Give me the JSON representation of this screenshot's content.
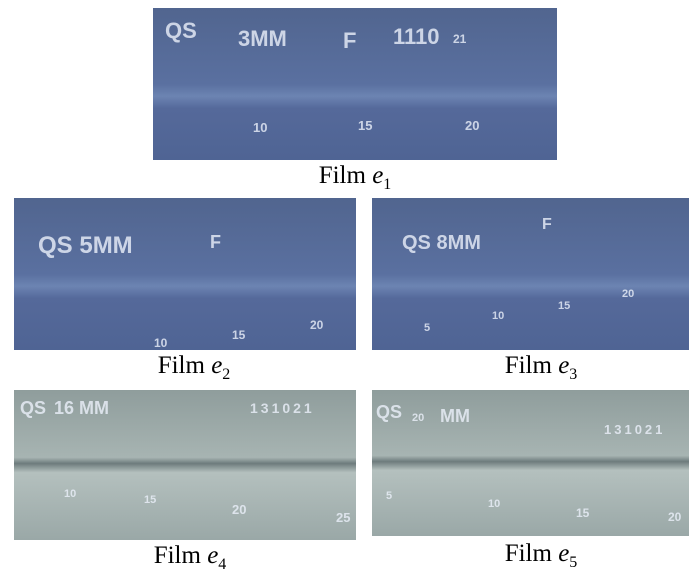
{
  "films": [
    {
      "caption": {
        "label": "Film",
        "variable": "e",
        "subscript": "1"
      },
      "markings": [
        "QS",
        "3MM",
        "F",
        "1110",
        "21",
        "10",
        "15",
        "20"
      ]
    },
    {
      "caption": {
        "label": "Film",
        "variable": "e",
        "subscript": "2"
      },
      "markings": [
        "QS 5MM",
        "F",
        "10",
        "15",
        "20"
      ]
    },
    {
      "caption": {
        "label": "Film",
        "variable": "e",
        "subscript": "3"
      },
      "markings": [
        "QS 8MM",
        "F",
        "5",
        "10",
        "15",
        "20"
      ]
    },
    {
      "caption": {
        "label": "Film",
        "variable": "e",
        "subscript": "4"
      },
      "markings": [
        "QS",
        "16 MM",
        "131021",
        "10",
        "15",
        "20",
        "25"
      ]
    },
    {
      "caption": {
        "label": "Film",
        "variable": "e",
        "subscript": "5"
      },
      "markings": [
        "QS",
        "20",
        "MM",
        "131021",
        "5",
        "10",
        "15",
        "20"
      ]
    }
  ]
}
